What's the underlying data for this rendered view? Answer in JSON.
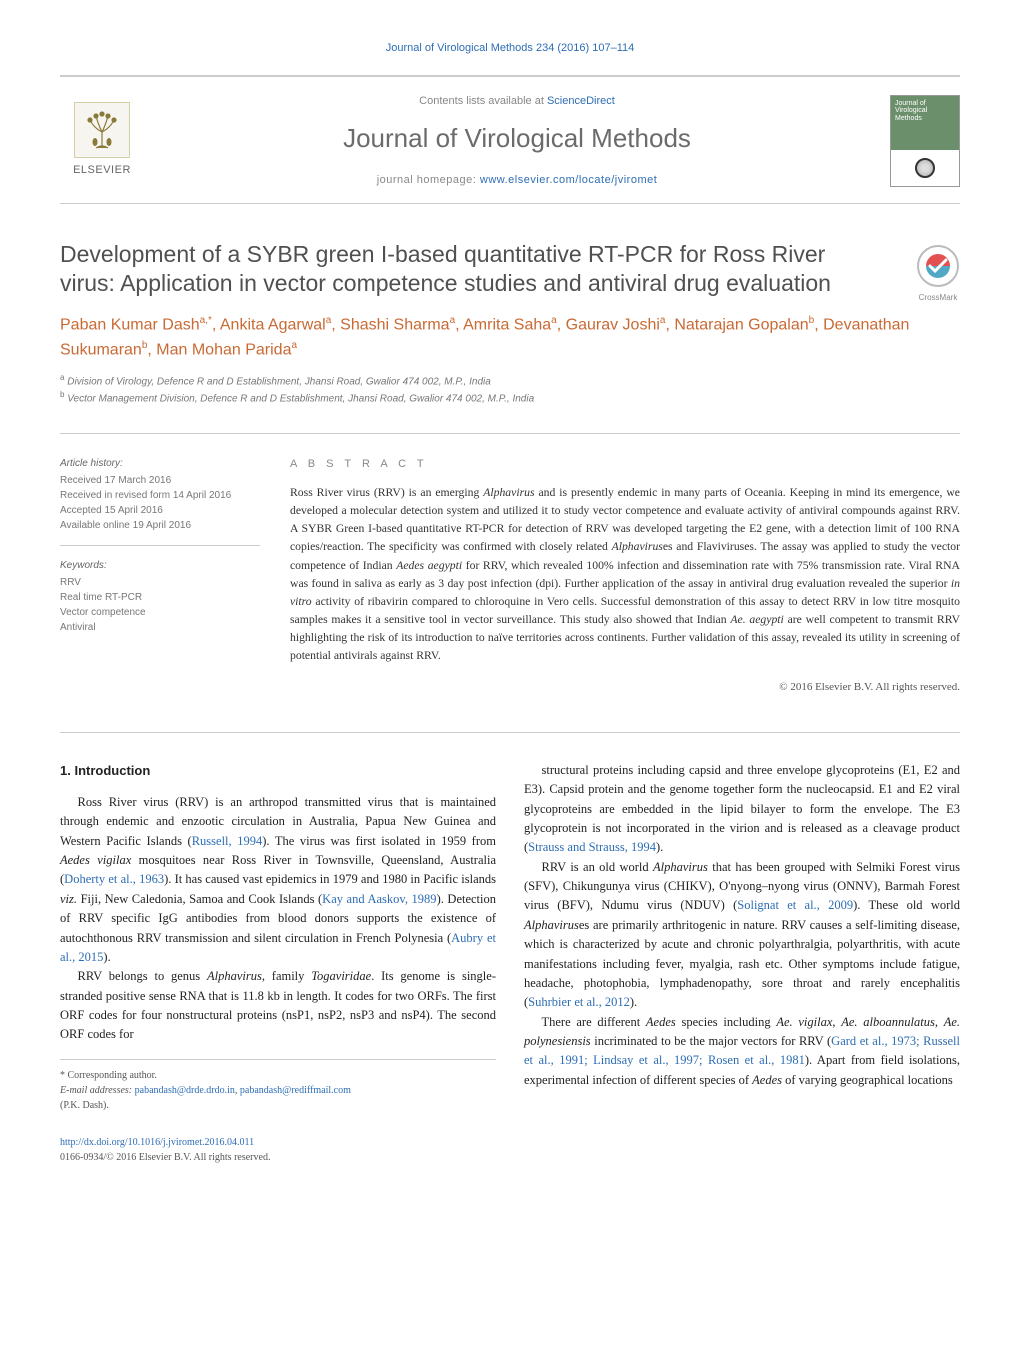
{
  "header": {
    "citation": "Journal of Virological Methods 234 (2016) 107–114",
    "contents_prefix": "Contents lists available at ",
    "contents_link": "ScienceDirect",
    "journal_title": "Journal of Virological Methods",
    "homepage_prefix": "journal homepage: ",
    "homepage_url": "www.elsevier.com/locate/jviromet",
    "publisher": "ELSEVIER",
    "cover_text": "Journal of Virological Methods"
  },
  "crossmark_label": "CrossMark",
  "title": "Development of a SYBR green I-based quantitative RT-PCR for Ross River virus: Application in vector competence studies and antiviral drug evaluation",
  "authors_html": "Paban Kumar Dash<sup>a,*</sup>, Ankita Agarwal<sup>a</sup>, Shashi Sharma<sup>a</sup>, Amrita Saha<sup>a</sup>, Gaurav Joshi<sup>a</sup>, Natarajan Gopalan<sup>b</sup>, Devanathan Sukumaran<sup>b</sup>, Man Mohan Parida<sup>a</sup>",
  "affiliations": {
    "a": "Division of Virology, Defence R and D Establishment, Jhansi Road, Gwalior 474 002, M.P., India",
    "b": "Vector Management Division, Defence R and D Establishment, Jhansi Road, Gwalior 474 002, M.P., India"
  },
  "article_info": {
    "history_head": "Article history:",
    "received": "Received 17 March 2016",
    "revised": "Received in revised form 14 April 2016",
    "accepted": "Accepted 15 April 2016",
    "online": "Available online 19 April 2016",
    "keywords_head": "Keywords:",
    "keywords": [
      "RRV",
      "Real time RT-PCR",
      "Vector competence",
      "Antiviral"
    ]
  },
  "abstract_head": "A B S T R A C T",
  "abstract": "Ross River virus (RRV) is an emerging Alphavirus and is presently endemic in many parts of Oceania. Keeping in mind its emergence, we developed a molecular detection system and utilized it to study vector competence and evaluate activity of antiviral compounds against RRV. A SYBR Green I-based quantitative RT-PCR for detection of RRV was developed targeting the E2 gene, with a detection limit of 100 RNA copies/reaction. The specificity was confirmed with closely related Alphaviruses and Flaviviruses. The assay was applied to study the vector competence of Indian Aedes aegypti for RRV, which revealed 100% infection and dissemination rate with 75% transmission rate. Viral RNA was found in saliva as early as 3 day post infection (dpi). Further application of the assay in antiviral drug evaluation revealed the superior in vitro activity of ribavirin compared to chloroquine in Vero cells. Successful demonstration of this assay to detect RRV in low titre mosquito samples makes it a sensitive tool in vector surveillance. This study also showed that Indian Ae. aegypti are well competent to transmit RRV highlighting the risk of its introduction to naïve territories across continents. Further validation of this assay, revealed its utility in screening of potential antivirals against RRV.",
  "copyright": "© 2016 Elsevier B.V. All rights reserved.",
  "section_head": "1. Introduction",
  "col1": {
    "p1": "Ross River virus (RRV) is an arthropod transmitted virus that is maintained through endemic and enzootic circulation in Australia, Papua New Guinea and Western Pacific Islands (Russell, 1994). The virus was first isolated in 1959 from Aedes vigilax mosquitoes near Ross River in Townsville, Queensland, Australia (Doherty et al., 1963). It has caused vast epidemics in 1979 and 1980 in Pacific islands viz. Fiji, New Caledonia, Samoa and Cook Islands (Kay and Aaskov, 1989). Detection of RRV specific IgG antibodies from blood donors supports the existence of autochthonous RRV transmission and silent circulation in French Polynesia (Aubry et al., 2015).",
    "p2": "RRV belongs to genus Alphavirus, family Togaviridae. Its genome is single-stranded positive sense RNA that is 11.8 kb in length. It codes for two ORFs. The first ORF codes for four nonstructural proteins (nsP1, nsP2, nsP3 and nsP4). The second ORF codes for"
  },
  "col2": {
    "p1": "structural proteins including capsid and three envelope glycoproteins (E1, E2 and E3). Capsid protein and the genome together form the nucleocapsid. E1 and E2 viral glycoproteins are embedded in the lipid bilayer to form the envelope. The E3 glycoprotein is not incorporated in the virion and is released as a cleavage product (Strauss and Strauss, 1994).",
    "p2": "RRV is an old world Alphavirus that has been grouped with Selmiki Forest virus (SFV), Chikungunya virus (CHIKV), O'nyong–nyong virus (ONNV), Barmah Forest virus (BFV), Ndumu virus (NDUV) (Solignat et al., 2009). These old world Alphaviruses are primarily arthritogenic in nature. RRV causes a self-limiting disease, which is characterized by acute and chronic polyarthralgia, polyarthritis, with acute manifestations including fever, myalgia, rash etc. Other symptoms include fatigue, headache, photophobia, lymphadenopathy, sore throat and rarely encephalitis (Suhrbier et al., 2012).",
    "p3": "There are different Aedes species including Ae. vigilax, Ae. alboannulatus, Ae. polynesiensis incriminated to be the major vectors for RRV (Gard et al., 1973; Russell et al., 1991; Lindsay et al., 1997; Rosen et al., 1981). Apart from field isolations, experimental infection of different species of Aedes of varying geographical locations"
  },
  "footnotes": {
    "corresponding": "* Corresponding author.",
    "email_label": "E-mail addresses:",
    "email1": "pabandash@drde.drdo.in",
    "email2": "pabandash@rediffmail.com",
    "email_tail": "(P.K. Dash)."
  },
  "doi": {
    "url": "http://dx.doi.org/10.1016/j.jviromet.2016.04.011",
    "line2": "0166-0934/© 2016 Elsevier B.V. All rights reserved."
  },
  "colors": {
    "link": "#2e6db4",
    "author": "#c96a34",
    "muted": "#777",
    "rule": "#ccc"
  }
}
